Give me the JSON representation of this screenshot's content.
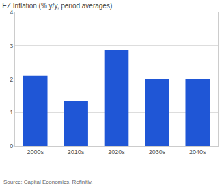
{
  "chart_data": {
    "type": "bar",
    "title": "EZ Inflation (% y/y, period averages)",
    "source": "Source: Capital Economics, Refinitiv.",
    "categories": [
      "2000s",
      "2010s",
      "2020s",
      "2030s",
      "2040s"
    ],
    "values": [
      2.1,
      1.35,
      2.87,
      2.0,
      2.0
    ],
    "color": "#1f56d6",
    "ylim": [
      0,
      4
    ],
    "yticks": [
      0,
      1,
      2,
      3,
      4
    ],
    "grid": true
  }
}
